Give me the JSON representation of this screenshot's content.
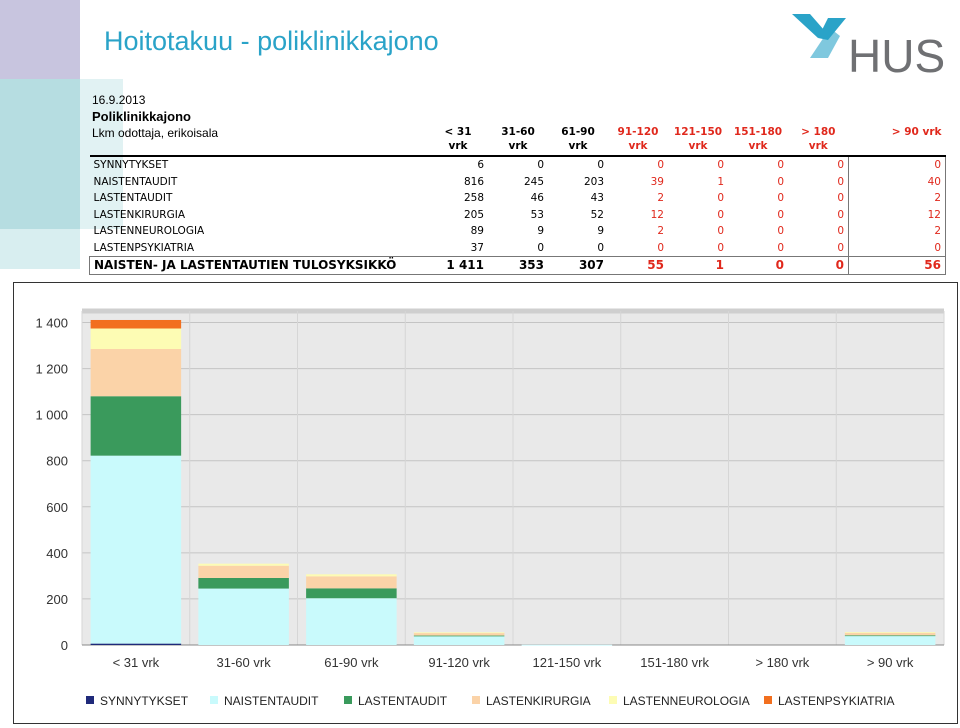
{
  "header": {
    "title": "Hoitotakuu - poliklinikkajono",
    "logo_text": "HUS",
    "date": "16.9.2013",
    "section": "Poliklinikkajono",
    "subtitle": "Lkm odottaja, erikoisala"
  },
  "table": {
    "columns": [
      {
        "line1": "< 31",
        "line2": "vrk"
      },
      {
        "line1": "31-60",
        "line2": "vrk"
      },
      {
        "line1": "61-90",
        "line2": "vrk"
      },
      {
        "line1": "91-120",
        "line2": "vrk"
      },
      {
        "line1": "121-150",
        "line2": "vrk"
      },
      {
        "line1": "151-180",
        "line2": "vrk"
      },
      {
        "line1": "> 180",
        "line2": "vrk"
      },
      {
        "line1": "> 90 vrk",
        "line2": ""
      }
    ],
    "rows": [
      {
        "name": "SYNNYTYKSET",
        "values": [
          "6",
          "0",
          "0",
          "0",
          "0",
          "0",
          "0",
          "0"
        ]
      },
      {
        "name": "NAISTENTAUDIT",
        "values": [
          "816",
          "245",
          "203",
          "39",
          "1",
          "0",
          "0",
          "40"
        ]
      },
      {
        "name": "LASTENTAUDIT",
        "values": [
          "258",
          "46",
          "43",
          "2",
          "0",
          "0",
          "0",
          "2"
        ]
      },
      {
        "name": "LASTENKIRURGIA",
        "values": [
          "205",
          "53",
          "52",
          "12",
          "0",
          "0",
          "0",
          "12"
        ]
      },
      {
        "name": "LASTENNEUROLOGIA",
        "values": [
          "89",
          "9",
          "9",
          "2",
          "0",
          "0",
          "0",
          "2"
        ]
      },
      {
        "name": "LASTENPSYKIATRIA",
        "values": [
          "37",
          "0",
          "0",
          "0",
          "0",
          "0",
          "0",
          "0"
        ]
      }
    ],
    "total": {
      "name": "NAISTEN- JA LASTENTAUTIEN TULOSYKSIKKÖ",
      "values": [
        "1 411",
        "353",
        "307",
        "55",
        "1",
        "0",
        "0",
        "56"
      ]
    }
  },
  "chart_data": {
    "type": "bar",
    "stacked": true,
    "categories": [
      "< 31 vrk",
      "31-60 vrk",
      "61-90 vrk",
      "91-120 vrk",
      "121-150 vrk",
      "151-180 vrk",
      "> 180 vrk",
      "> 90 vrk"
    ],
    "series": [
      {
        "name": "SYNNYTYKSET",
        "color": "#1f2a7a",
        "values": [
          6,
          0,
          0,
          0,
          0,
          0,
          0,
          0
        ]
      },
      {
        "name": "NAISTENTAUDIT",
        "color": "#c9fafc",
        "values": [
          816,
          245,
          203,
          39,
          1,
          0,
          0,
          40
        ]
      },
      {
        "name": "LASTENTAUDIT",
        "color": "#3a9a5c",
        "values": [
          258,
          46,
          43,
          2,
          0,
          0,
          0,
          2
        ]
      },
      {
        "name": "LASTENKIRURGIA",
        "color": "#fbd3a8",
        "values": [
          205,
          53,
          52,
          12,
          0,
          0,
          0,
          12
        ]
      },
      {
        "name": "LASTENNEUROLOGIA",
        "color": "#fdfcb4",
        "values": [
          89,
          9,
          9,
          2,
          0,
          0,
          0,
          2
        ]
      },
      {
        "name": "LASTENPSYKIATRIA",
        "color": "#f26f1f",
        "values": [
          37,
          0,
          0,
          0,
          0,
          0,
          0,
          0
        ]
      }
    ],
    "yticks": [
      "0",
      "200",
      "400",
      "600",
      "800",
      "1 000",
      "1 200",
      "1 400"
    ],
    "ylim": [
      0,
      1450
    ],
    "grid": true,
    "legend": "bottom",
    "title": "",
    "xlabel": "",
    "ylabel": ""
  }
}
